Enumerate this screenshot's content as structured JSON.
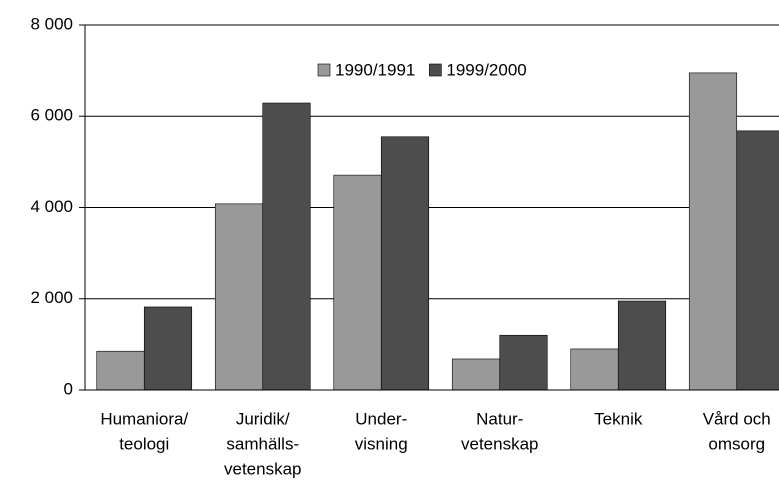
{
  "chart_data": {
    "type": "bar",
    "categories": [
      [
        "Humaniora/",
        "teologi"
      ],
      [
        "Juridik/",
        "samhälls-",
        "vetenskap"
      ],
      [
        "Under-",
        "visning"
      ],
      [
        "Natur-",
        "vetenskap"
      ],
      [
        "Teknik"
      ],
      [
        "Vård och",
        "omsorg"
      ]
    ],
    "series": [
      {
        "name": "1990/1991",
        "color": "#999999",
        "values": [
          850,
          4080,
          4710,
          680,
          900,
          6950
        ]
      },
      {
        "name": "1999/2000",
        "color": "#4d4d4d",
        "values": [
          1820,
          6290,
          5550,
          1200,
          1950,
          5680
        ]
      }
    ],
    "ylim": [
      0,
      8000
    ],
    "yticks": [
      0,
      {
        "value": 2000,
        "label": "2 000"
      },
      {
        "value": 4000,
        "label": "4 000"
      },
      {
        "value": 6000,
        "label": "6 000"
      },
      {
        "value": 8000,
        "label": "8 000"
      }
    ],
    "grid": true,
    "legend": "top"
  }
}
